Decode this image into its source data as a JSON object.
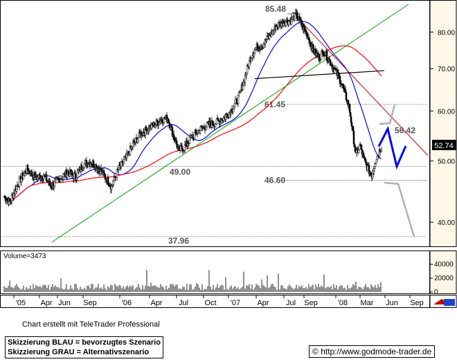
{
  "chart_data": [
    {
      "type": "candlestick",
      "symbol_last_value": "52.74",
      "y_axis_ticks": [
        "80.00",
        "70.00",
        "60.00",
        "50.00",
        "40.00"
      ],
      "y_scale": "log",
      "ylim": [
        37.0,
        89.0
      ],
      "x_ticks": [
        "'05",
        "Apr",
        "Jun",
        "Sep",
        "'06",
        "Apr",
        "Jul",
        "Oct",
        "'07",
        "Apr",
        "Jul",
        "Sep",
        "'08",
        "Mar",
        "Jun",
        "Sep"
      ],
      "price_path": [
        {
          "x": 0,
          "y": 44.0
        },
        {
          "x": 8,
          "y": 43.0
        },
        {
          "x": 20,
          "y": 46.0
        },
        {
          "x": 33,
          "y": 48.5
        },
        {
          "x": 45,
          "y": 47.0
        },
        {
          "x": 57,
          "y": 47.5
        },
        {
          "x": 68,
          "y": 45.5
        },
        {
          "x": 80,
          "y": 46.8
        },
        {
          "x": 92,
          "y": 48.0
        },
        {
          "x": 103,
          "y": 47.2
        },
        {
          "x": 115,
          "y": 49.5
        },
        {
          "x": 126,
          "y": 49.8
        },
        {
          "x": 138,
          "y": 48.5
        },
        {
          "x": 147,
          "y": 47.0
        },
        {
          "x": 155,
          "y": 45.5
        },
        {
          "x": 165,
          "y": 48.5
        },
        {
          "x": 176,
          "y": 50.5
        },
        {
          "x": 186,
          "y": 53.0
        },
        {
          "x": 196,
          "y": 55.0
        },
        {
          "x": 206,
          "y": 56.0
        },
        {
          "x": 216,
          "y": 57.0
        },
        {
          "x": 226,
          "y": 58.0
        },
        {
          "x": 236,
          "y": 58.5
        },
        {
          "x": 244,
          "y": 55.0
        },
        {
          "x": 252,
          "y": 52.0
        },
        {
          "x": 260,
          "y": 52.5
        },
        {
          "x": 270,
          "y": 54.5
        },
        {
          "x": 282,
          "y": 56.0
        },
        {
          "x": 294,
          "y": 57.0
        },
        {
          "x": 306,
          "y": 57.5
        },
        {
          "x": 318,
          "y": 58.5
        },
        {
          "x": 330,
          "y": 60.5
        },
        {
          "x": 340,
          "y": 63.5
        },
        {
          "x": 348,
          "y": 68.0
        },
        {
          "x": 356,
          "y": 73.0
        },
        {
          "x": 364,
          "y": 75.5
        },
        {
          "x": 374,
          "y": 76.5
        },
        {
          "x": 384,
          "y": 79.0
        },
        {
          "x": 394,
          "y": 82.0
        },
        {
          "x": 404,
          "y": 83.0
        },
        {
          "x": 414,
          "y": 83.5
        },
        {
          "x": 422,
          "y": 85.0
        },
        {
          "x": 430,
          "y": 82.0
        },
        {
          "x": 438,
          "y": 79.0
        },
        {
          "x": 446,
          "y": 75.0
        },
        {
          "x": 454,
          "y": 73.0
        },
        {
          "x": 462,
          "y": 74.5
        },
        {
          "x": 470,
          "y": 72.0
        },
        {
          "x": 478,
          "y": 69.5
        },
        {
          "x": 486,
          "y": 67.0
        },
        {
          "x": 492,
          "y": 64.0
        },
        {
          "x": 498,
          "y": 61.0
        },
        {
          "x": 503,
          "y": 56.0
        },
        {
          "x": 508,
          "y": 51.0
        },
        {
          "x": 514,
          "y": 53.0
        },
        {
          "x": 520,
          "y": 50.0
        },
        {
          "x": 526,
          "y": 48.5
        },
        {
          "x": 531,
          "y": 47.5
        },
        {
          "x": 536,
          "y": 50.0
        },
        {
          "x": 541,
          "y": 51.5
        },
        {
          "x": 545,
          "y": 52.74
        }
      ],
      "horizontal_levels": [
        {
          "label": "85.48",
          "value": 85.48
        },
        {
          "label": "61.45",
          "value": 61.45
        },
        {
          "label": "56.42",
          "value": 56.42
        },
        {
          "label": "49.00",
          "value": 49.0
        },
        {
          "label": "46.60",
          "value": 46.6
        },
        {
          "label": "37.96",
          "value": 37.96
        }
      ],
      "scenario_labels": [
        "Skizzierung BLAU = bevorzugtes Szenario",
        "Skizzierung GRAU = Alternativszenario"
      ],
      "indicator_colors": {
        "ma_short": "#0000ff",
        "ma_long": "#ff0000",
        "resistance_trend": "#cc0000",
        "support_trend": "#009900",
        "preferred": "#0000ff",
        "alternative": "#b0b0b0"
      }
    },
    {
      "type": "bar",
      "title": "Volume=3473",
      "y_axis_ticks": [
        "40000",
        "20000",
        "0"
      ],
      "ylim": [
        0,
        50000
      ]
    }
  ],
  "footer": {
    "credit": "Chart erstellt mit TeleTrader Professional",
    "scenario_blue": "Skizzierung BLAU = bevorzugtes Szenario",
    "scenario_grey": "Skizzierung GRAU = Alternativszenario",
    "url": "http://www.godmode-trader.de",
    "copyright_symbol": "©"
  }
}
